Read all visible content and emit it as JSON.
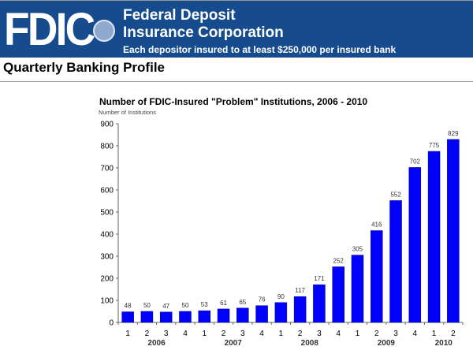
{
  "header": {
    "logo": "FDIC",
    "org_line1": "Federal Deposit",
    "org_line2": "Insurance Corporation",
    "tagline": "Each depositor insured to at least $250,000 per insured bank",
    "page_title": "Quarterly Banking Profile"
  },
  "colors": {
    "banner": "#164c8e",
    "bar": "#0000ff"
  },
  "chart_data": {
    "type": "bar",
    "title": "Number of FDIC-Insured \"Problem\" Institutions, 2006 - 2010",
    "ylabel": "Number of Institutions",
    "xlabel": "",
    "ylim": [
      0,
      900
    ],
    "yticks": [
      0,
      100,
      200,
      300,
      400,
      500,
      600,
      700,
      800,
      900
    ],
    "categories": [
      "1",
      "2",
      "3",
      "4",
      "1",
      "2",
      "3",
      "4",
      "1",
      "2",
      "3",
      "4",
      "1",
      "2",
      "3",
      "4",
      "1",
      "2"
    ],
    "groups": [
      {
        "label": "2006",
        "count": 4
      },
      {
        "label": "2007",
        "count": 4
      },
      {
        "label": "2008",
        "count": 4
      },
      {
        "label": "2009",
        "count": 4
      },
      {
        "label": "2010",
        "count": 2
      }
    ],
    "values": [
      48,
      50,
      47,
      50,
      53,
      61,
      65,
      76,
      90,
      117,
      171,
      252,
      305,
      416,
      552,
      702,
      775,
      829
    ],
    "grid": false,
    "legend": "none"
  }
}
